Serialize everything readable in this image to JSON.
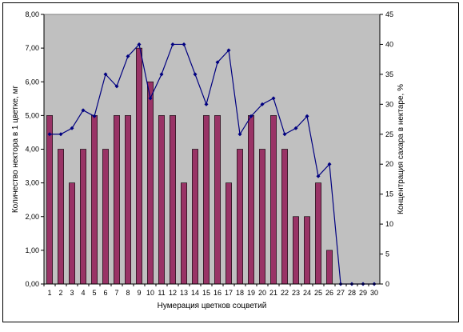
{
  "chart_data": {
    "type": "bar+line",
    "categories": [
      "1",
      "2",
      "3",
      "4",
      "5",
      "6",
      "7",
      "8",
      "9",
      "10",
      "11",
      "12",
      "13",
      "14",
      "15",
      "16",
      "17",
      "18",
      "19",
      "20",
      "21",
      "22",
      "23",
      "24",
      "25",
      "26",
      "27",
      "28",
      "29",
      "30"
    ],
    "series": [
      {
        "kind": "bar",
        "axis": "left",
        "values": [
          5,
          4,
          3,
          4,
          5,
          4,
          5,
          5,
          7,
          6,
          5,
          5,
          3,
          4,
          5,
          5,
          3,
          4,
          5,
          4,
          5,
          4,
          2,
          2,
          3,
          1,
          0,
          0,
          0,
          0
        ]
      },
      {
        "kind": "line",
        "axis": "right",
        "values": [
          25,
          25,
          26,
          29,
          28,
          35,
          33,
          38,
          40,
          31,
          35,
          40,
          40,
          35,
          30,
          37,
          39,
          25,
          28,
          30,
          31,
          25,
          26,
          28,
          18,
          20,
          0,
          0,
          0,
          0
        ]
      }
    ],
    "xlabel": "Нумерация цветков соцветий",
    "ylabel_left": "Количество нектора в 1 цветке, мг",
    "ylabel_right": "Концентрация сахара в нектаре, %",
    "ylim_left": [
      0,
      8
    ],
    "ylim_right": [
      0,
      45
    ],
    "yticks_left": [
      "0,00",
      "1,00",
      "2,00",
      "3,00",
      "4,00",
      "5,00",
      "6,00",
      "7,00",
      "8,00"
    ],
    "yticks_right": [
      "0",
      "5",
      "10",
      "15",
      "20",
      "25",
      "30",
      "35",
      "40",
      "45"
    ],
    "grid": false,
    "legend": "none",
    "colors": {
      "plot_background": "#c0c0c0",
      "bar_fill": "#993366",
      "line": "#000080"
    }
  }
}
